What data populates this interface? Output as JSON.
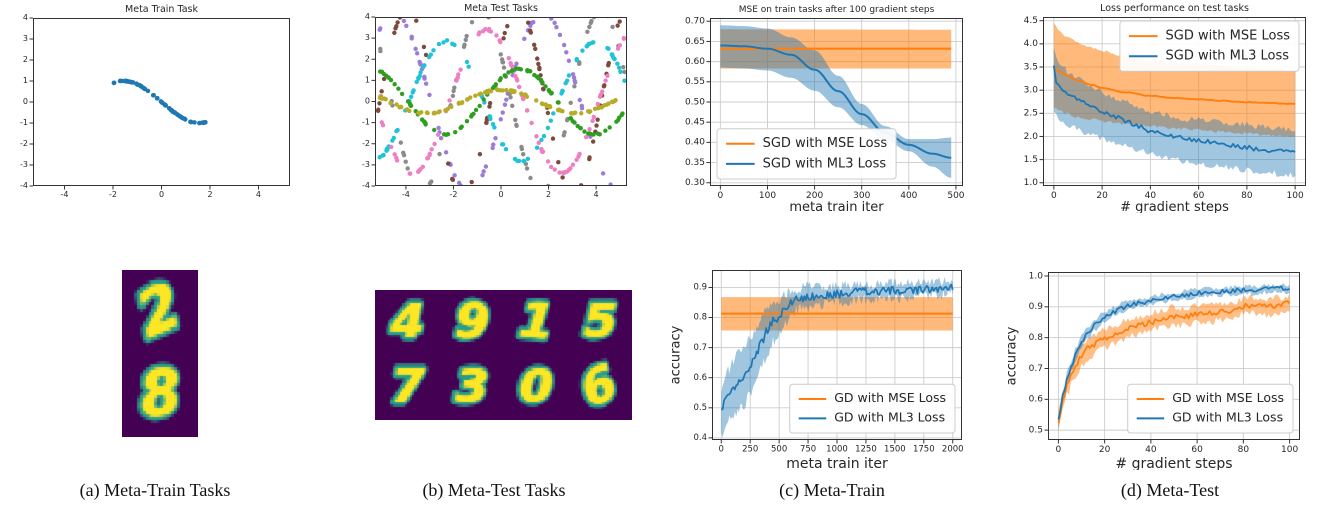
{
  "figure": {
    "background": "#ffffff"
  },
  "colors": {
    "mse_orange": "#ff7f0e",
    "ml3_blue": "#1f77b4",
    "grid": "#cccccc",
    "spine": "#333333",
    "tick_text": "#262626",
    "mnist_background": "#440154",
    "mnist_digit": "#fde725",
    "mnist_edge": "#2a9d8a"
  },
  "captions": {
    "a": "(a) Meta-Train Tasks",
    "b": "(b) Meta-Test Tasks",
    "c": "(c) Meta-Train",
    "d": "(d) Meta-Test"
  },
  "chart_data": [
    {
      "id": "meta-train-task",
      "type": "scatter",
      "title": "Meta Train Task",
      "xlabel": "",
      "ylabel": "",
      "xlim": [
        -5.3,
        5.3
      ],
      "ylim": [
        -4,
        4
      ],
      "xticks": [
        "-4",
        "-2",
        "0",
        "2",
        "4"
      ],
      "yticks": [
        "-4",
        "-3",
        "-2",
        "-1",
        "0",
        "1",
        "2",
        "3",
        "4"
      ],
      "grid": false,
      "tasks": [
        {
          "name": "train sine task y=-sin(x)",
          "color": "#1f77b4",
          "amp": 1.0,
          "freq": 1.0,
          "phase": 3.1416,
          "xmin": -2.0,
          "xmax": 1.9,
          "n": 62,
          "jitter": 0.015,
          "size": 2.3
        }
      ]
    },
    {
      "id": "meta-test-tasks",
      "type": "scatter",
      "title": "Meta Test Tasks",
      "xlabel": "",
      "ylabel": "",
      "xlim": [
        -5.3,
        5.3
      ],
      "ylim": [
        -4,
        4
      ],
      "xticks": [
        "-4",
        "-2",
        "0",
        "2",
        "4"
      ],
      "yticks": [
        "-4",
        "-3",
        "-2",
        "-1",
        "0",
        "1",
        "2",
        "3",
        "4"
      ],
      "grid": false,
      "tasks": [
        {
          "name": "task purple",
          "color": "#9d7bd8",
          "amp": 4.15,
          "freq": 1.0,
          "phase": -0.2,
          "xmin": -5.2,
          "xmax": 5.2,
          "n": 85,
          "jitter": 0.05,
          "size": 2.2
        },
        {
          "name": "task gray",
          "color": "#8b8b8b",
          "amp": 4.3,
          "freq": 1.25,
          "phase": 2.6,
          "xmin": -5.2,
          "xmax": 5.2,
          "n": 80,
          "jitter": 0.05,
          "size": 2.2
        },
        {
          "name": "task brown",
          "color": "#7d4a3c",
          "amp": 4.4,
          "freq": 1.35,
          "phase": 0.6,
          "xmin": -5.2,
          "xmax": 5.2,
          "n": 80,
          "jitter": 0.05,
          "size": 2.2
        },
        {
          "name": "task cyan",
          "color": "#20c2d7",
          "amp": 2.85,
          "freq": 1.0,
          "phase": 3.87,
          "xmin": -5.2,
          "xmax": 5.2,
          "n": 85,
          "jitter": 0.05,
          "size": 2.2
        },
        {
          "name": "task pink",
          "color": "#ef7fc4",
          "amp": 3.4,
          "freq": 1.0,
          "phase": 2.17,
          "xmin": -5.2,
          "xmax": 5.2,
          "n": 85,
          "jitter": 0.05,
          "size": 2.2
        },
        {
          "name": "task green",
          "color": "#2f9e1f",
          "amp": 1.55,
          "freq": 1.0,
          "phase": 0.77,
          "xmin": -5.2,
          "xmax": 5.2,
          "n": 90,
          "jitter": 0.04,
          "size": 2.2
        },
        {
          "name": "task olive",
          "color": "#b7ab27",
          "amp": 0.55,
          "freq": 1.0,
          "phase": 1.57,
          "xmin": -5.2,
          "xmax": 5.2,
          "n": 95,
          "jitter": 0.04,
          "size": 2.2
        }
      ]
    },
    {
      "id": "mse-train-tasks",
      "type": "line",
      "title": "MSE on train tasks after 100 gradient steps",
      "xlabel": "meta train iter",
      "ylabel": "",
      "xlim": [
        -22,
        515
      ],
      "ylim": [
        0.292,
        0.708
      ],
      "xticks": [
        "0",
        "100",
        "200",
        "300",
        "400",
        "500"
      ],
      "yticks": [
        "0.30",
        "0.35",
        "0.40",
        "0.45",
        "0.50",
        "0.55",
        "0.60",
        "0.65",
        "0.70"
      ],
      "grid": true,
      "legend": {
        "loc": "lower-left"
      },
      "series": [
        {
          "name": "SGD with MSE Loss",
          "color": "#ff7f0e",
          "lw": 2.2,
          "noise": 0,
          "band_noise": 0,
          "band_alpha": 0.55,
          "x": [
            0,
            490
          ],
          "y": [
            0.632,
            0.632
          ],
          "upper": [
            0.68,
            0.679
          ],
          "lower": [
            0.583,
            0.583
          ]
        },
        {
          "name": "SGD with ML3 Loss",
          "color": "#1f77b4",
          "lw": 2.0,
          "noise": 0,
          "band_noise": 0,
          "band_alpha": 0.45,
          "x": [
            0,
            50,
            100,
            150,
            200,
            250,
            300,
            350,
            400,
            450,
            490
          ],
          "y": [
            0.64,
            0.638,
            0.632,
            0.617,
            0.58,
            0.527,
            0.47,
            0.424,
            0.394,
            0.372,
            0.362
          ],
          "upper": [
            0.69,
            0.688,
            0.682,
            0.66,
            0.628,
            0.565,
            0.495,
            0.44,
            0.408,
            0.408,
            0.412
          ],
          "lower": [
            0.585,
            0.583,
            0.578,
            0.56,
            0.528,
            0.487,
            0.443,
            0.406,
            0.378,
            0.34,
            0.312
          ]
        }
      ]
    },
    {
      "id": "loss-test-tasks",
      "type": "line",
      "title": "Loss performance on test tasks",
      "xlabel": "# gradient steps",
      "ylabel": "",
      "xlim": [
        -4.5,
        104.5
      ],
      "ylim": [
        0.93,
        4.58
      ],
      "xticks": [
        "0",
        "20",
        "40",
        "60",
        "80",
        "100"
      ],
      "yticks": [
        "1.0",
        "1.5",
        "2.0",
        "2.5",
        "3.0",
        "3.5",
        "4.0",
        "4.5"
      ],
      "grid": true,
      "legend": {
        "loc": "upper-right"
      },
      "series": [
        {
          "name": "SGD with MSE Loss",
          "color": "#ff7f0e",
          "lw": 1.9,
          "noise": 0.008,
          "band_noise": 0.03,
          "band_alpha": 0.55,
          "samples": 110,
          "x": [
            0,
            2,
            5,
            10,
            15,
            20,
            30,
            40,
            50,
            60,
            70,
            80,
            90,
            100
          ],
          "y": [
            3.5,
            3.42,
            3.33,
            3.21,
            3.12,
            3.05,
            2.95,
            2.88,
            2.83,
            2.8,
            2.77,
            2.74,
            2.72,
            2.7
          ],
          "upper": [
            4.45,
            4.32,
            4.18,
            4.02,
            3.93,
            3.85,
            3.74,
            3.66,
            3.6,
            3.56,
            3.52,
            3.49,
            3.46,
            3.44
          ],
          "lower": [
            2.62,
            2.55,
            2.5,
            2.42,
            2.37,
            2.33,
            2.27,
            2.22,
            2.18,
            2.14,
            2.1,
            2.06,
            2.03,
            2.0
          ]
        },
        {
          "name": "SGD with ML3 Loss",
          "color": "#1f77b4",
          "lw": 1.8,
          "noise": 0.045,
          "band_noise": 0.07,
          "band_alpha": 0.42,
          "samples": 105,
          "x": [
            0,
            1,
            2,
            4,
            6,
            8,
            10,
            14,
            18,
            22,
            26,
            30,
            35,
            40,
            45,
            50,
            55,
            60,
            65,
            70,
            75,
            80,
            85,
            90,
            95,
            100
          ],
          "y": [
            3.5,
            3.15,
            3.08,
            3.0,
            2.92,
            2.85,
            2.8,
            2.68,
            2.58,
            2.5,
            2.42,
            2.33,
            2.22,
            2.12,
            2.06,
            2.0,
            1.95,
            1.92,
            1.88,
            1.85,
            1.8,
            1.76,
            1.72,
            1.7,
            1.68,
            1.65
          ],
          "upper": [
            3.95,
            3.7,
            3.6,
            3.48,
            3.38,
            3.3,
            3.24,
            3.1,
            3.0,
            2.9,
            2.8,
            2.72,
            2.62,
            2.55,
            2.48,
            2.42,
            2.38,
            2.35,
            2.32,
            2.3,
            2.28,
            2.26,
            2.22,
            2.2,
            2.18,
            2.15
          ],
          "lower": [
            2.55,
            2.45,
            2.4,
            2.32,
            2.26,
            2.2,
            2.15,
            2.05,
            1.98,
            1.92,
            1.85,
            1.78,
            1.7,
            1.62,
            1.55,
            1.5,
            1.45,
            1.42,
            1.38,
            1.35,
            1.3,
            1.27,
            1.24,
            1.21,
            1.18,
            1.15
          ]
        }
      ]
    },
    {
      "id": "acc-train",
      "type": "line",
      "title": "",
      "xlabel": "meta train iter",
      "ylabel": "accuracy",
      "xlim": [
        -80,
        2080
      ],
      "ylim": [
        0.393,
        0.958
      ],
      "xticks": [
        "0",
        "250",
        "500",
        "750",
        "1000",
        "1250",
        "1500",
        "1750",
        "2000"
      ],
      "yticks": [
        "0.4",
        "0.5",
        "0.6",
        "0.7",
        "0.8",
        "0.9"
      ],
      "grid": true,
      "legend": {
        "loc": "lower-right"
      },
      "series": [
        {
          "name": "GD with MSE Loss",
          "color": "#ff7f0e",
          "lw": 2.0,
          "noise": 0,
          "band_noise": 0,
          "band_alpha": 0.55,
          "x": [
            0,
            2000
          ],
          "y": [
            0.813,
            0.813
          ],
          "upper": [
            0.868,
            0.868
          ],
          "lower": [
            0.757,
            0.757
          ]
        },
        {
          "name": "GD with ML3 Loss",
          "color": "#1f77b4",
          "lw": 1.7,
          "noise": 0.013,
          "band_noise": 0.018,
          "band_alpha": 0.42,
          "samples": 170,
          "x": [
            0,
            50,
            100,
            150,
            200,
            250,
            300,
            350,
            400,
            450,
            500,
            550,
            600,
            650,
            700,
            750,
            800,
            900,
            1000,
            1100,
            1200,
            1300,
            1400,
            1500,
            1600,
            1700,
            1800,
            1900,
            2000
          ],
          "y": [
            0.485,
            0.545,
            0.56,
            0.58,
            0.6,
            0.64,
            0.68,
            0.72,
            0.76,
            0.79,
            0.8,
            0.83,
            0.85,
            0.86,
            0.865,
            0.87,
            0.868,
            0.875,
            0.878,
            0.882,
            0.888,
            0.885,
            0.888,
            0.89,
            0.888,
            0.892,
            0.895,
            0.898,
            0.905
          ],
          "upper": [
            0.56,
            0.62,
            0.65,
            0.68,
            0.7,
            0.73,
            0.76,
            0.8,
            0.83,
            0.85,
            0.86,
            0.875,
            0.89,
            0.895,
            0.9,
            0.905,
            0.9,
            0.905,
            0.905,
            0.91,
            0.915,
            0.91,
            0.912,
            0.915,
            0.912,
            0.915,
            0.918,
            0.92,
            0.925
          ],
          "lower": [
            0.41,
            0.46,
            0.47,
            0.49,
            0.51,
            0.55,
            0.6,
            0.64,
            0.68,
            0.72,
            0.74,
            0.78,
            0.81,
            0.825,
            0.83,
            0.835,
            0.835,
            0.845,
            0.85,
            0.855,
            0.86,
            0.86,
            0.863,
            0.865,
            0.863,
            0.868,
            0.872,
            0.875,
            0.885
          ]
        }
      ]
    },
    {
      "id": "acc-test",
      "type": "line",
      "title": "",
      "xlabel": "# gradient steps",
      "ylabel": "accuracy",
      "xlim": [
        -4.5,
        104.5
      ],
      "ylim": [
        0.468,
        1.013
      ],
      "xticks": [
        "0",
        "20",
        "40",
        "60",
        "80",
        "100"
      ],
      "yticks": [
        "0.5",
        "0.6",
        "0.7",
        "0.8",
        "0.9",
        "1.0"
      ],
      "grid": true,
      "legend": {
        "loc": "lower-right"
      },
      "series": [
        {
          "name": "GD with MSE Loss",
          "color": "#ff7f0e",
          "lw": 1.7,
          "noise": 0.01,
          "band_noise": 0.012,
          "band_alpha": 0.5,
          "samples": 110,
          "x": [
            0,
            2,
            4,
            6,
            8,
            10,
            13,
            16,
            20,
            24,
            28,
            32,
            36,
            40,
            45,
            50,
            55,
            60,
            65,
            70,
            75,
            80,
            85,
            90,
            95,
            100
          ],
          "y": [
            0.53,
            0.6,
            0.655,
            0.69,
            0.72,
            0.745,
            0.765,
            0.78,
            0.8,
            0.812,
            0.822,
            0.833,
            0.843,
            0.852,
            0.862,
            0.87,
            0.868,
            0.875,
            0.878,
            0.882,
            0.89,
            0.9,
            0.905,
            0.9,
            0.905,
            0.912
          ],
          "upper": [
            0.565,
            0.635,
            0.69,
            0.725,
            0.755,
            0.78,
            0.798,
            0.812,
            0.83,
            0.842,
            0.852,
            0.862,
            0.872,
            0.88,
            0.89,
            0.898,
            0.896,
            0.902,
            0.905,
            0.908,
            0.915,
            0.925,
            0.93,
            0.925,
            0.93,
            0.935
          ],
          "lower": [
            0.495,
            0.565,
            0.62,
            0.655,
            0.685,
            0.71,
            0.732,
            0.748,
            0.77,
            0.782,
            0.792,
            0.804,
            0.814,
            0.824,
            0.834,
            0.842,
            0.84,
            0.848,
            0.851,
            0.856,
            0.865,
            0.875,
            0.88,
            0.875,
            0.88,
            0.889
          ]
        },
        {
          "name": "GD with ML3 Loss",
          "color": "#1f77b4",
          "lw": 1.7,
          "noise": 0.007,
          "band_noise": 0.008,
          "band_alpha": 0.42,
          "samples": 110,
          "x": [
            0,
            2,
            4,
            6,
            8,
            10,
            13,
            16,
            20,
            24,
            28,
            32,
            36,
            40,
            45,
            50,
            55,
            60,
            65,
            70,
            75,
            80,
            85,
            90,
            95,
            100
          ],
          "y": [
            0.53,
            0.61,
            0.675,
            0.715,
            0.755,
            0.785,
            0.815,
            0.842,
            0.868,
            0.884,
            0.898,
            0.908,
            0.914,
            0.92,
            0.928,
            0.934,
            0.939,
            0.944,
            0.947,
            0.95,
            0.952,
            0.955,
            0.955,
            0.958,
            0.96,
            0.96
          ],
          "upper": [
            0.548,
            0.628,
            0.693,
            0.733,
            0.773,
            0.803,
            0.833,
            0.858,
            0.884,
            0.899,
            0.912,
            0.921,
            0.927,
            0.933,
            0.94,
            0.946,
            0.951,
            0.956,
            0.959,
            0.962,
            0.964,
            0.967,
            0.967,
            0.97,
            0.972,
            0.972
          ],
          "lower": [
            0.512,
            0.592,
            0.657,
            0.697,
            0.737,
            0.767,
            0.797,
            0.826,
            0.852,
            0.869,
            0.884,
            0.895,
            0.901,
            0.907,
            0.916,
            0.922,
            0.927,
            0.932,
            0.935,
            0.938,
            0.94,
            0.943,
            0.943,
            0.946,
            0.948,
            0.948
          ]
        }
      ]
    },
    {
      "id": "mnist-train",
      "type": "image-grid",
      "title": "",
      "digits": [
        [
          "2"
        ],
        [
          "8"
        ]
      ]
    },
    {
      "id": "mnist-test",
      "type": "image-grid",
      "title": "",
      "digits": [
        [
          "4",
          "9",
          "1",
          "5"
        ],
        [
          "7",
          "3",
          "0",
          "6"
        ]
      ]
    }
  ]
}
